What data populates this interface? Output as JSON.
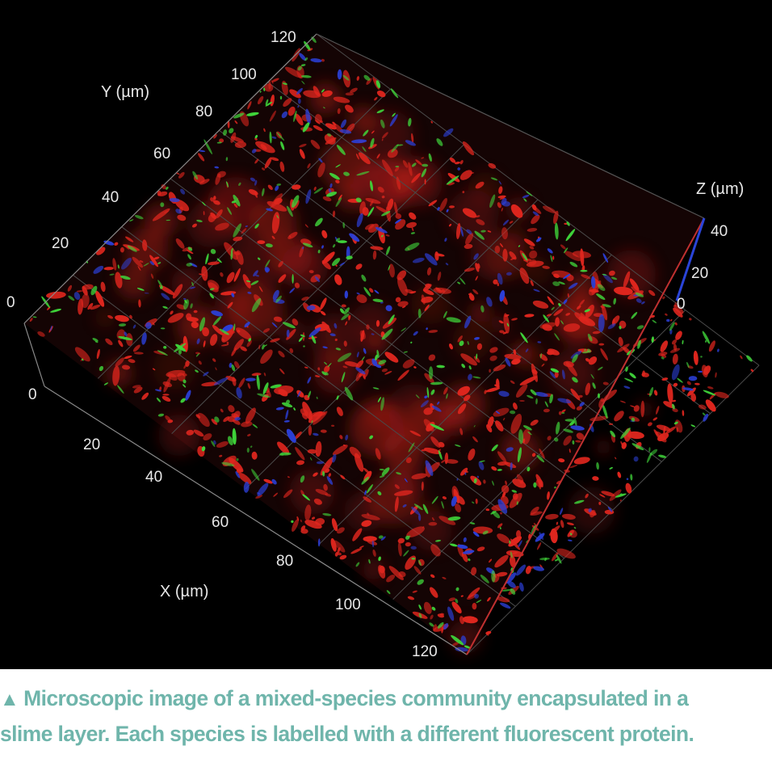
{
  "figure": {
    "axes": {
      "x_label": "X (µm)",
      "y_label": "Y (µm)",
      "z_label": "Z (µm)",
      "x_ticks": [
        "0",
        "20",
        "40",
        "60",
        "80",
        "100",
        "120"
      ],
      "y_ticks": [
        "0",
        "20",
        "40",
        "60",
        "80",
        "100",
        "120"
      ],
      "z_ticks": [
        "0",
        "20",
        "40"
      ]
    },
    "colors": {
      "background": "#000000",
      "species_red": "#e0261e",
      "species_green": "#3fd43a",
      "species_blue": "#2b3fd6",
      "z_axis_line": "#d23030",
      "z_tick_marks": "#2a44d8",
      "caption": "#6fb5ab"
    }
  },
  "caption": {
    "marker": "▲",
    "line1": "Microscopic image of a mixed-species community encapsulated in a",
    "line2": "slime layer. Each species is labelled with a different fluorescent protein."
  }
}
